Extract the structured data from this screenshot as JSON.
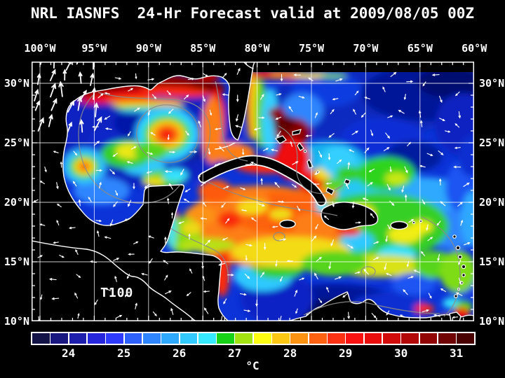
{
  "title": "NRL IASNFS  24-Hr Forecast valid at 2009/08/05 00Z",
  "map": {
    "region_label": "T100",
    "lon_ticks": [
      "100°W",
      "95°W",
      "90°W",
      "85°W",
      "80°W",
      "75°W",
      "70°W",
      "65°W",
      "60°W"
    ],
    "lat_ticks": [
      "30°N",
      "25°N",
      "20°N",
      "15°N",
      "10°N"
    ]
  },
  "colorbar": {
    "unit": "°C",
    "tick_labels": [
      "24",
      "25",
      "26",
      "27",
      "28",
      "29",
      "30",
      "31"
    ],
    "cell_colors": [
      "#131347",
      "#181880",
      "#1f1fae",
      "#2626dd",
      "#2e3bfb",
      "#2e60fc",
      "#2e85fd",
      "#2fa9fe",
      "#32c9fe",
      "#36e9fe",
      "#17d217",
      "#a4e312",
      "#fdfd13",
      "#fdc813",
      "#fd9313",
      "#fd6213",
      "#fd3113",
      "#fa1111",
      "#ea0d0d",
      "#d20b0b",
      "#b30808",
      "#920505",
      "#700303",
      "#4a0101"
    ]
  },
  "chart_data": {
    "type": "heatmap",
    "title": "NRL IASNFS 24-Hr Forecast valid at 2009/08/05 00Z",
    "variable": "T100 (temperature at 100 m depth)",
    "unit": "°C",
    "colorbar_ticks": [
      24,
      25,
      26,
      27,
      28,
      29,
      30,
      31
    ],
    "colorbar_cells": 24,
    "colorbar_range_c": [
      23.3,
      31.3
    ],
    "x_axis": {
      "label_side": "top",
      "ticks_deg_west": [
        100,
        95,
        90,
        85,
        80,
        75,
        70,
        65,
        60
      ]
    },
    "y_axis": {
      "label_side": "both",
      "ticks_deg_north": [
        30,
        25,
        20,
        15,
        10
      ]
    },
    "grid": "on, 5-degree graticule",
    "overlays": [
      "white current-vector arrows",
      "gray bathymetry contours",
      "black land mask with white coastlines"
    ],
    "notable_features": [
      "warm anticyclonic eddy (red core ~29-30 °C) in central Gulf of Mexico near 90°W 26°N",
      "smaller warm eddy near 96°W 23.5°N in the Bay of Campeche",
      "dark-red (>30 °C) shallow shelf band along the northern Gulf coast and over the Bahama Banks",
      "broad warm (28-29 °C) pool across the northwest Caribbean between Yucatan, Cuba and Hispaniola",
      "cold (<25 °C) deep blue band along the southern Caribbean off Colombia/Venezuela",
      "mostly 25-26 °C blues across the open Atlantic northeast of the Antilles"
    ]
  }
}
